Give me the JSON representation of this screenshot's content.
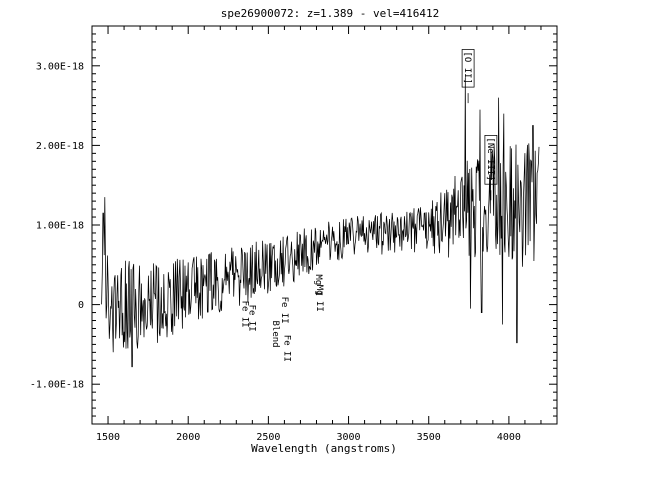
{
  "chart_data": {
    "type": "line",
    "title": "spe26900072: z=1.389 - vel=416412",
    "xlabel": "Wavelength (angstroms)",
    "ylabel": "",
    "xlim": [
      1400,
      4300
    ],
    "ylim": [
      -1.5e-18,
      3.5e-18
    ],
    "x_ticks": [
      1500,
      2000,
      2500,
      3000,
      3500,
      4000
    ],
    "x_tick_labels": [
      "1500",
      "2000",
      "2500",
      "3000",
      "3500",
      "4000"
    ],
    "y_ticks": [
      -1e-18,
      0,
      1e-18,
      2e-18,
      3e-18
    ],
    "y_tick_labels": [
      "-1.00E-18",
      "0",
      "1.00E-18",
      "2.00E-18",
      "3.00E-18"
    ],
    "grid": false,
    "spectrum_range": [
      1460,
      4190
    ],
    "continuum": [
      {
        "x": 1460,
        "y": 5e-20
      },
      {
        "x": 1700,
        "y": -5e-20
      },
      {
        "x": 2000,
        "y": 1.5e-19
      },
      {
        "x": 2300,
        "y": 3.5e-19
      },
      {
        "x": 2600,
        "y": 5.5e-19
      },
      {
        "x": 2800,
        "y": 7.2e-19
      },
      {
        "x": 3000,
        "y": 8.5e-19
      },
      {
        "x": 3300,
        "y": 9e-19
      },
      {
        "x": 3500,
        "y": 9.5e-19
      },
      {
        "x": 3700,
        "y": 1.15e-18
      },
      {
        "x": 3900,
        "y": 1.35e-18
      },
      {
        "x": 4190,
        "y": 1.2e-18
      }
    ],
    "noise_amplitude": [
      {
        "x": 1460,
        "y": 6.5e-19
      },
      {
        "x": 2000,
        "y": 4.5e-19
      },
      {
        "x": 2500,
        "y": 3.5e-19
      },
      {
        "x": 3000,
        "y": 2.5e-19
      },
      {
        "x": 3500,
        "y": 3e-19
      },
      {
        "x": 3700,
        "y": 6e-19
      },
      {
        "x": 4190,
        "y": 8.5e-19
      }
    ],
    "peaks": [
      {
        "x": 3727,
        "y": 2.85e-18
      },
      {
        "x": 3820,
        "y": 2.45e-18
      },
      {
        "x": 3935,
        "y": 2.6e-18
      },
      {
        "x": 3968,
        "y": 2.4e-18
      },
      {
        "x": 4150,
        "y": 2.25e-18
      },
      {
        "x": 1470,
        "y": 1.15e-18
      },
      {
        "x": 1480,
        "y": 1.35e-18
      }
    ],
    "troughs": [
      {
        "x": 1650,
        "y": -7.8e-19
      },
      {
        "x": 3760,
        "y": -5e-20
      },
      {
        "x": 3830,
        "y": -1e-19
      },
      {
        "x": 3960,
        "y": -2.5e-19
      },
      {
        "x": 4050,
        "y": -4.8e-19
      }
    ],
    "line_annotations": [
      {
        "label": "Fe II",
        "x": 2340,
        "y": 5e-20,
        "bracket": false
      },
      {
        "label": "Fe II",
        "x": 2382,
        "y": 0.0,
        "bracket": false
      },
      {
        "label": "Blend",
        "x": 2530,
        "y": -2e-19,
        "bracket": false
      },
      {
        "label": "Fe II",
        "x": 2586,
        "y": 1e-19,
        "bracket": false
      },
      {
        "label": "Fe II",
        "x": 2600,
        "y": -3.8e-19,
        "bracket": false
      },
      {
        "label": "Mg I",
        "x": 2796,
        "y": 3.8e-19,
        "bracket": false
      },
      {
        "label": "Mg II",
        "x": 2803,
        "y": 2.5e-19,
        "bracket": false
      },
      {
        "label": "[O II]",
        "x": 3727,
        "y": 3.18e-18,
        "bracket": true
      },
      {
        "label": "[Ne III]",
        "x": 3869,
        "y": 2.1e-18,
        "bracket": true
      }
    ]
  }
}
